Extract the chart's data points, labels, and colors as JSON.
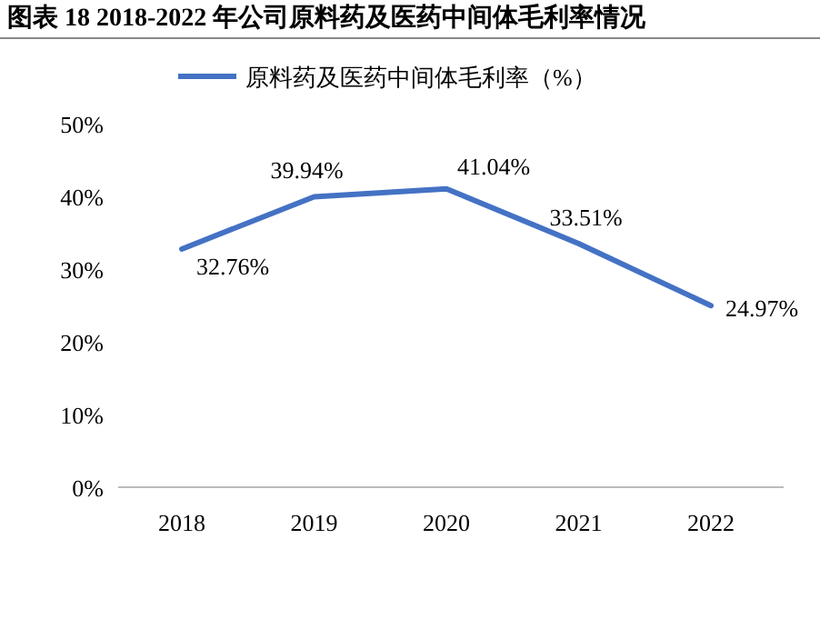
{
  "chart_data": {
    "type": "line",
    "title": "图表 18 2018-2022 年公司原料药及医药中间体毛利率情况",
    "categories": [
      "2018",
      "2019",
      "2020",
      "2021",
      "2022"
    ],
    "series": [
      {
        "name": "原料药及医药中间体毛利率（%）",
        "color": "#4472c4",
        "values": [
          32.76,
          39.94,
          41.04,
          33.51,
          24.97
        ],
        "value_labels": [
          "32.76%",
          "39.94%",
          "41.04%",
          "33.51%",
          "24.97%"
        ]
      }
    ],
    "ylim": [
      0,
      50
    ],
    "yticks": [
      {
        "value": 0,
        "label": "0%"
      },
      {
        "value": 10,
        "label": "10%"
      },
      {
        "value": 20,
        "label": "20%"
      },
      {
        "value": 30,
        "label": "30%"
      },
      {
        "value": 40,
        "label": "40%"
      },
      {
        "value": 50,
        "label": "50%"
      }
    ],
    "grid": false,
    "legend": "top",
    "marker": "none",
    "line_style": "solid"
  }
}
